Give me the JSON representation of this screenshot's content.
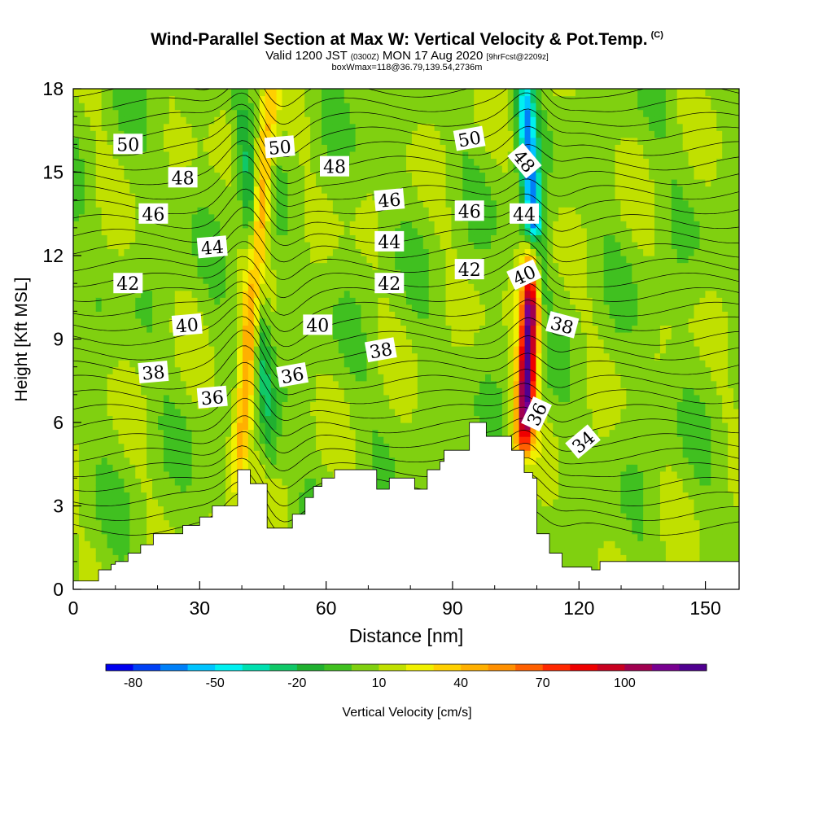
{
  "header": {
    "title_main": "Wind-Parallel Section at Max W: Vertical Velocity & Pot.Temp.",
    "title_tag": "(C)",
    "valid_pre": "Valid 1200 JST",
    "valid_utc": "(0300Z)",
    "valid_date": "MON 17 Aug 2020",
    "valid_fcst": "[9hrFcst@2209z]",
    "box_info": "boxWmax=118@36.79,139.54,2736m"
  },
  "chart_data": {
    "type": "heatmap",
    "title": "Wind-Parallel Section at Max W: Vertical Velocity & Pot.Temp.",
    "xlabel": "Distance [nm]",
    "ylabel": "Height [Kft MSL]",
    "xlim": [
      0,
      158
    ],
    "ylim": [
      0,
      18
    ],
    "xticks": [
      0,
      30,
      60,
      90,
      120,
      150
    ],
    "yticks": [
      0,
      3,
      6,
      9,
      12,
      15,
      18
    ],
    "colorbar": {
      "label": "Vertical Velocity [cm/s]",
      "tick_labels": [
        -80,
        -50,
        -20,
        10,
        40,
        70,
        100
      ],
      "bounds": [
        -90,
        130
      ],
      "step": 10,
      "colors": [
        "#0000ee",
        "#0040f4",
        "#0080f8",
        "#00c4ff",
        "#00f0f0",
        "#00e0b0",
        "#10c868",
        "#20b030",
        "#40c020",
        "#80d010",
        "#c0e000",
        "#f0f000",
        "#ffd000",
        "#ffb000",
        "#ff9000",
        "#ff6000",
        "#ff2800",
        "#ee0000",
        "#c80020",
        "#a00050",
        "#780090",
        "#500090"
      ]
    },
    "velocity_features": [
      {
        "x": 39,
        "y_bottom": 3.8,
        "y_top": 18,
        "lean_per_kft": 0.55,
        "peak_w": 50,
        "kind": "updraft"
      },
      {
        "x": 47,
        "y_bottom": 4.5,
        "y_top": 18,
        "lean_per_kft": -0.55,
        "peak_w": -30,
        "kind": "downdraft"
      },
      {
        "x": 107,
        "y_bottom": 5.5,
        "y_top": 12,
        "lean_per_kft": 0.3,
        "peak_w": 118,
        "kind": "updraft"
      },
      {
        "x": 110,
        "y_bottom": 11,
        "y_top": 18,
        "lean_per_kft": -0.4,
        "peak_w": -70,
        "kind": "downdraft"
      }
    ],
    "terrain": {
      "x": [
        0,
        6,
        6,
        9,
        9,
        10,
        10,
        13,
        13,
        16,
        16,
        19,
        19,
        26,
        26,
        30,
        30,
        33,
        33,
        39,
        39,
        42,
        42,
        46,
        46,
        52,
        52,
        55,
        55,
        57,
        57,
        59,
        59,
        62,
        62,
        72,
        72,
        75,
        75,
        81,
        81,
        84,
        84,
        87,
        87,
        88,
        88,
        94,
        94,
        98,
        98,
        104,
        104,
        107,
        107,
        109,
        109,
        110,
        110,
        113,
        113,
        116,
        116,
        123,
        123,
        125,
        125,
        135,
        135,
        155,
        155,
        158
      ],
      "y": [
        0.3,
        0.3,
        0.7,
        0.7,
        0.9,
        0.9,
        1.0,
        1.0,
        1.3,
        1.3,
        1.6,
        1.6,
        2.0,
        2.0,
        2.3,
        2.3,
        2.6,
        2.6,
        3.0,
        3.0,
        4.3,
        4.3,
        3.8,
        3.8,
        2.2,
        2.2,
        2.7,
        2.7,
        3.3,
        3.3,
        3.7,
        3.7,
        4.0,
        4.0,
        4.3,
        4.3,
        3.6,
        3.6,
        4.0,
        4.0,
        3.6,
        3.6,
        4.3,
        4.3,
        4.6,
        4.6,
        5.0,
        5.0,
        6.0,
        6.0,
        5.5,
        5.5,
        5.0,
        5.0,
        4.2,
        4.2,
        4.0,
        4.0,
        2.0,
        2.0,
        1.3,
        1.3,
        0.8,
        0.8,
        0.7,
        0.7,
        1.0,
        1.0,
        1.0,
        1.0,
        1.0,
        1.0
      ]
    },
    "theta_contours": {
      "min": 34,
      "max": 51,
      "step": 0.5,
      "labels": [
        {
          "text": "50",
          "x": 13,
          "y": 16.0,
          "angle": 0
        },
        {
          "text": "48",
          "x": 26,
          "y": 14.8,
          "angle": 0
        },
        {
          "text": "46",
          "x": 19,
          "y": 13.5,
          "angle": 0
        },
        {
          "text": "44",
          "x": 33,
          "y": 12.3,
          "angle": -5
        },
        {
          "text": "42",
          "x": 13,
          "y": 11.0,
          "angle": 0
        },
        {
          "text": "40",
          "x": 27,
          "y": 9.5,
          "angle": -5
        },
        {
          "text": "38",
          "x": 19,
          "y": 7.8,
          "angle": -5
        },
        {
          "text": "36",
          "x": 33,
          "y": 6.9,
          "angle": -5
        },
        {
          "text": "50",
          "x": 49,
          "y": 15.9,
          "angle": -5
        },
        {
          "text": "48",
          "x": 62,
          "y": 15.2,
          "angle": 0
        },
        {
          "text": "46",
          "x": 75,
          "y": 14.0,
          "angle": -5
        },
        {
          "text": "44",
          "x": 75,
          "y": 12.5,
          "angle": 0
        },
        {
          "text": "42",
          "x": 75,
          "y": 11.0,
          "angle": 0
        },
        {
          "text": "40",
          "x": 58,
          "y": 9.5,
          "angle": 0
        },
        {
          "text": "38",
          "x": 73,
          "y": 8.6,
          "angle": -10
        },
        {
          "text": "36",
          "x": 52,
          "y": 7.7,
          "angle": -10
        },
        {
          "text": "50",
          "x": 94,
          "y": 16.2,
          "angle": -10
        },
        {
          "text": "48",
          "x": 107,
          "y": 15.4,
          "angle": 50
        },
        {
          "text": "46",
          "x": 94,
          "y": 13.6,
          "angle": 0
        },
        {
          "text": "44",
          "x": 107,
          "y": 13.5,
          "angle": 0
        },
        {
          "text": "42",
          "x": 94,
          "y": 11.5,
          "angle": 0
        },
        {
          "text": "40",
          "x": 107,
          "y": 11.3,
          "angle": -25
        },
        {
          "text": "38",
          "x": 116,
          "y": 9.5,
          "angle": 15
        },
        {
          "text": "36",
          "x": 110,
          "y": 6.3,
          "angle": -65
        },
        {
          "text": "34",
          "x": 121,
          "y": 5.3,
          "angle": -40
        }
      ]
    }
  }
}
